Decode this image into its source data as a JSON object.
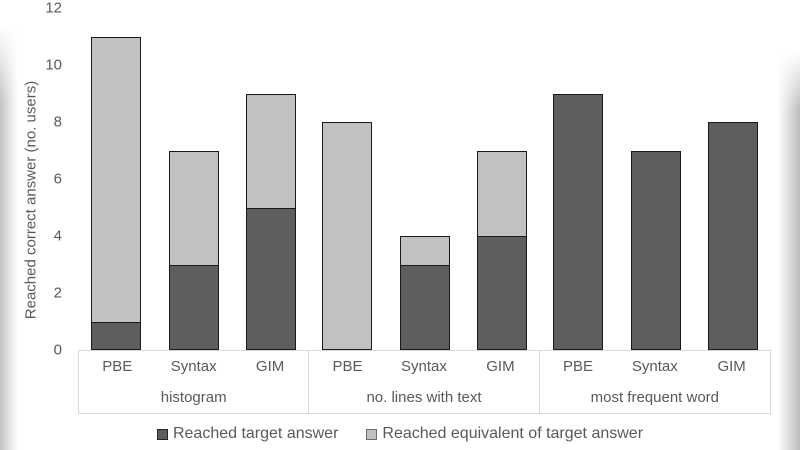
{
  "y_axis": {
    "title": "Reached correct answer (no. users)",
    "ticks": [
      "0",
      "2",
      "4",
      "6",
      "8",
      "10",
      "12"
    ]
  },
  "x_axis": {
    "groups": [
      "histogram",
      "no. lines with text",
      "most frequent word"
    ],
    "categories": [
      "PBE",
      "Syntax",
      "GIM"
    ]
  },
  "legend": {
    "items": [
      {
        "label": "Reached target answer",
        "color": "#5e5e5e"
      },
      {
        "label": "Reached equivalent of target answer",
        "color": "#c1c1c1"
      }
    ]
  },
  "colors": {
    "dark_series": "#5e5e5e",
    "light_series": "#c1c1c1",
    "bar_border": "#1a1a1a",
    "axis_box_border": "#d9d9d9",
    "text": "#595959"
  },
  "chart_data": {
    "type": "bar",
    "stacked": true,
    "title": "",
    "ylabel": "Reached correct answer (no. users)",
    "xlabel": "",
    "ylim": [
      0,
      12
    ],
    "ytick_step": 2,
    "grid": false,
    "legend_position": "bottom",
    "groups": [
      "histogram",
      "no. lines with text",
      "most frequent word"
    ],
    "categories": [
      "PBE",
      "Syntax",
      "GIM"
    ],
    "series": [
      {
        "name": "Reached target answer",
        "color": "#5e5e5e",
        "values": [
          [
            1,
            3,
            5
          ],
          [
            0,
            3,
            4
          ],
          [
            9,
            7,
            8
          ]
        ]
      },
      {
        "name": "Reached equivalent of target answer",
        "color": "#c1c1c1",
        "values": [
          [
            10,
            4,
            4
          ],
          [
            8,
            1,
            3
          ],
          [
            0,
            0,
            0
          ]
        ]
      }
    ],
    "totals": [
      [
        11,
        7,
        9
      ],
      [
        8,
        4,
        7
      ],
      [
        9,
        7,
        8
      ]
    ]
  }
}
